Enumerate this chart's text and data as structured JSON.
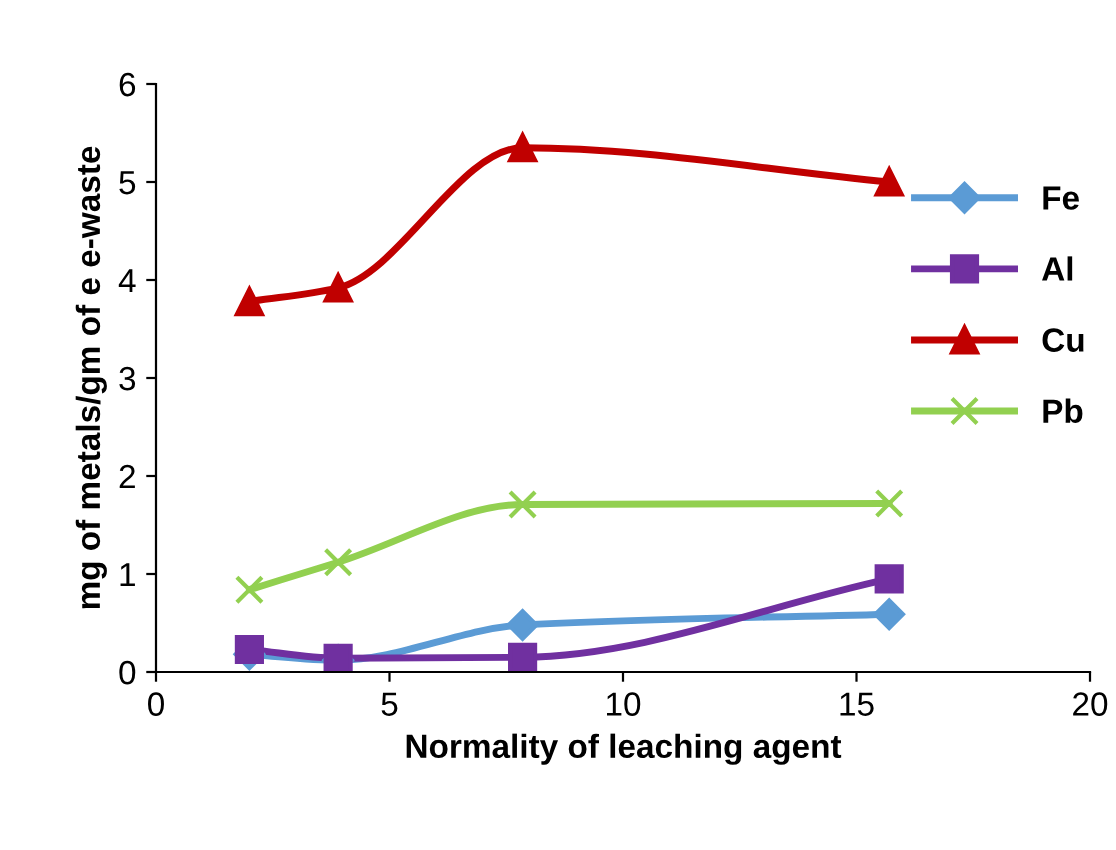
{
  "chart_data": {
    "type": "line",
    "xlabel": "Normality of leaching agent",
    "ylabel": "mg of metals/gm of e e-waste",
    "x": [
      2,
      3.9,
      7.85,
      15.7
    ],
    "series": [
      {
        "name": "Fe",
        "color": "#5b9bd5",
        "marker": "diamond",
        "values": [
          0.18,
          0.12,
          0.48,
          0.59
        ]
      },
      {
        "name": "Al",
        "color": "#7030a0",
        "marker": "square",
        "values": [
          0.23,
          0.14,
          0.15,
          0.95
        ]
      },
      {
        "name": "Cu",
        "color": "#c00000",
        "marker": "triangle",
        "values": [
          3.78,
          3.92,
          5.35,
          5.0
        ]
      },
      {
        "name": "Pb",
        "color": "#92d050",
        "marker": "cross",
        "values": [
          0.84,
          1.12,
          1.71,
          1.72
        ]
      }
    ],
    "xlim": [
      0,
      20
    ],
    "xticks": [
      0,
      5,
      10,
      15,
      20
    ],
    "ylim": [
      0,
      6
    ],
    "yticks": [
      0,
      1,
      2,
      3,
      4,
      5,
      6
    ],
    "grid": false,
    "legend": "right",
    "line_style": "solid"
  }
}
